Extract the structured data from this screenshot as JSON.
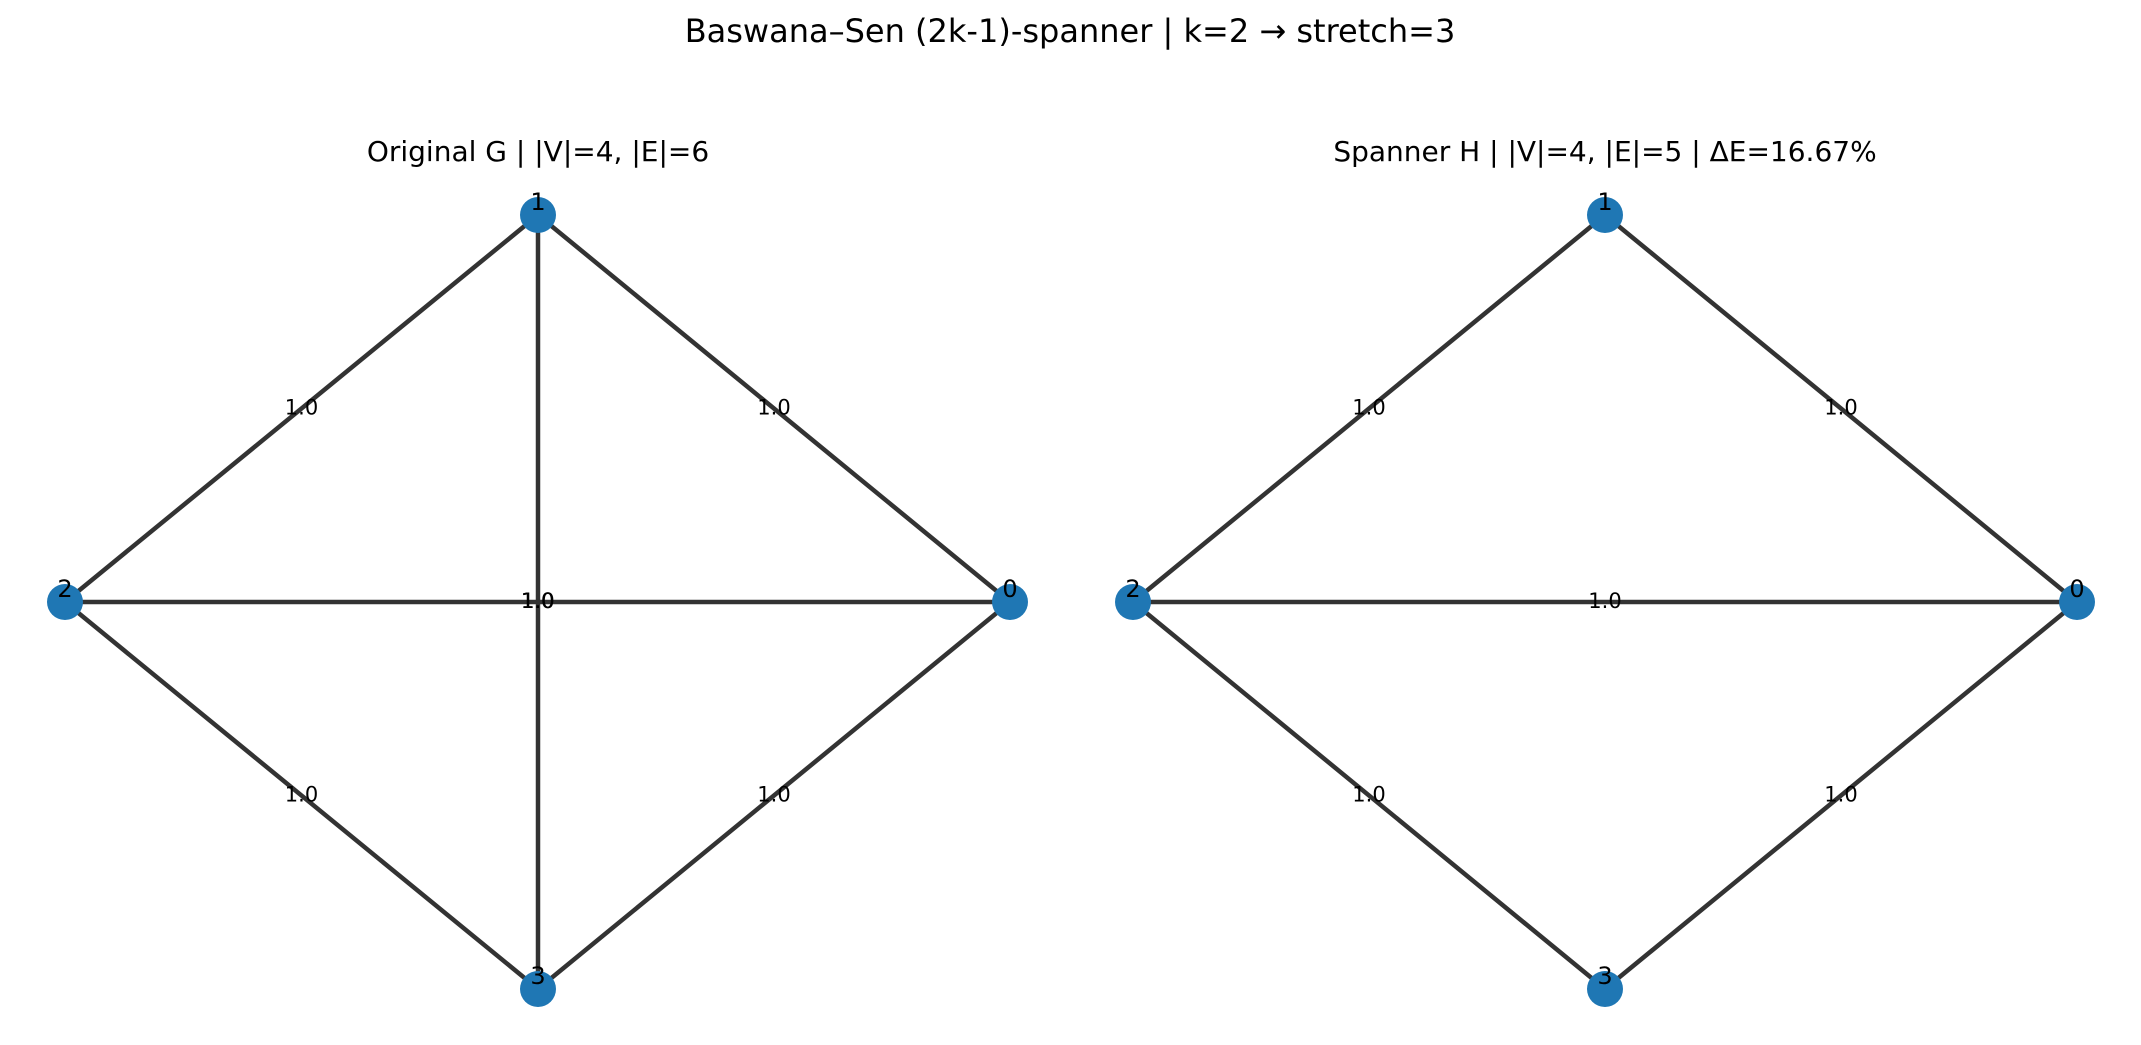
{
  "figure": {
    "title": "Baswana–Sen (2k-1)-spanner  |  k=2  →  stretch=3",
    "node_color": "#1f77b4",
    "edge_color": "#333333",
    "panels": [
      {
        "id": "original",
        "title": "Original G  |  |V|=4, |E|=6",
        "nodes": [
          "0",
          "1",
          "2",
          "3"
        ],
        "edges": [
          {
            "source": "1",
            "target": "0",
            "weight": "1.0"
          },
          {
            "source": "1",
            "target": "2",
            "weight": "1.0"
          },
          {
            "source": "1",
            "target": "3",
            "weight": "1.0"
          },
          {
            "source": "2",
            "target": "0",
            "weight": "1.0"
          },
          {
            "source": "2",
            "target": "3",
            "weight": "1.0"
          },
          {
            "source": "3",
            "target": "0",
            "weight": "1.0"
          }
        ]
      },
      {
        "id": "spanner",
        "title": "Spanner H  |  |V|=4, |E|=5  |  ΔE=16.67%",
        "nodes": [
          "0",
          "1",
          "2",
          "3"
        ],
        "edges": [
          {
            "source": "1",
            "target": "0",
            "weight": "1.0"
          },
          {
            "source": "1",
            "target": "2",
            "weight": "1.0"
          },
          {
            "source": "2",
            "target": "0",
            "weight": "1.0"
          },
          {
            "source": "2",
            "target": "3",
            "weight": "1.0"
          },
          {
            "source": "3",
            "target": "0",
            "weight": "1.0"
          }
        ]
      }
    ]
  }
}
